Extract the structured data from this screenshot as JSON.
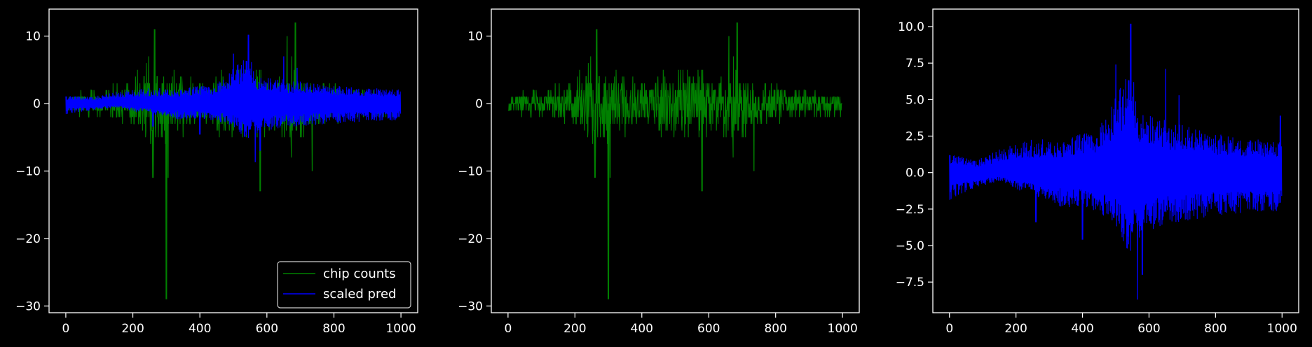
{
  "figure": {
    "background": "#000000",
    "foreground": "#ffffff"
  },
  "chart_data": [
    {
      "id": "left",
      "type": "line",
      "title": "",
      "xlabel": "",
      "ylabel": "",
      "xlim": [
        -50,
        1050
      ],
      "ylim": [
        -31,
        14
      ],
      "xticks": [
        0,
        200,
        400,
        600,
        800,
        1000
      ],
      "yticks": [
        -30,
        -20,
        -10,
        0,
        10
      ],
      "ytick_labels": [
        "−30",
        "−20",
        "−10",
        "0",
        "10"
      ],
      "grid": false,
      "legend": {
        "placement": "bottom-right",
        "entries": [
          {
            "label": "chip counts",
            "color": "#008000"
          },
          {
            "label": "scaled pred",
            "color": "#0000ff"
          }
        ]
      },
      "series": [
        {
          "name": "chip counts",
          "color": "#008000",
          "style": "counts",
          "n": 1000,
          "envelope": [
            [
              0,
              2
            ],
            [
              100,
              2.5
            ],
            [
              200,
              4
            ],
            [
              250,
              8.5
            ],
            [
              300,
              7
            ],
            [
              350,
              5
            ],
            [
              400,
              4
            ],
            [
              450,
              5.5
            ],
            [
              500,
              6
            ],
            [
              550,
              7
            ],
            [
              600,
              5
            ],
            [
              650,
              6.5
            ],
            [
              680,
              9.5
            ],
            [
              720,
              5
            ],
            [
              800,
              3.5
            ],
            [
              900,
              2.5
            ],
            [
              1000,
              2
            ]
          ],
          "spikes": [
            [
              265,
              11
            ],
            [
              300,
              -29
            ],
            [
              305,
              -11
            ],
            [
              580,
              -13
            ],
            [
              660,
              10
            ],
            [
              685,
              12
            ],
            [
              735,
              -10
            ],
            [
              260,
              -11
            ]
          ]
        },
        {
          "name": "scaled pred",
          "color": "#0000ff",
          "style": "pred",
          "n": 1000,
          "upper": [
            [
              0,
              0.7
            ],
            [
              80,
              0.6
            ],
            [
              150,
              1.1
            ],
            [
              250,
              1.4
            ],
            [
              350,
              1.4
            ],
            [
              450,
              1.8
            ],
            [
              500,
              3.2
            ],
            [
              545,
              4.5
            ],
            [
              570,
              2.5
            ],
            [
              650,
              2.2
            ],
            [
              750,
              1.8
            ],
            [
              850,
              1.5
            ],
            [
              1000,
              1.3
            ]
          ],
          "lower": [
            [
              0,
              -1.0
            ],
            [
              80,
              -0.6
            ],
            [
              150,
              -0.4
            ],
            [
              250,
              -1.0
            ],
            [
              350,
              -1.5
            ],
            [
              450,
              -1.5
            ],
            [
              500,
              -2.3
            ],
            [
              545,
              -3.6
            ],
            [
              580,
              -2.6
            ],
            [
              650,
              -2.2
            ],
            [
              800,
              -1.8
            ],
            [
              1000,
              -1.5
            ]
          ],
          "spikes": [
            [
              545,
              10.2
            ],
            [
              500,
              7.4
            ],
            [
              565,
              -8.7
            ],
            [
              650,
              7.0
            ],
            [
              690,
              5.3
            ],
            [
              580,
              -7.0
            ],
            [
              260,
              -3.4
            ],
            [
              400,
              -4.6
            ]
          ]
        }
      ]
    },
    {
      "id": "middle",
      "type": "line",
      "title": "",
      "xlabel": "",
      "ylabel": "",
      "xlim": [
        -50,
        1050
      ],
      "ylim": [
        -31,
        14
      ],
      "xticks": [
        0,
        200,
        400,
        600,
        800,
        1000
      ],
      "yticks": [
        -30,
        -20,
        -10,
        0,
        10
      ],
      "ytick_labels": [
        "−30",
        "−20",
        "−10",
        "0",
        "10"
      ],
      "grid": false,
      "series": [
        {
          "name": "chip counts",
          "color": "#008000",
          "style": "counts",
          "n": 1000,
          "envelope": [
            [
              0,
              2
            ],
            [
              100,
              2.5
            ],
            [
              200,
              4
            ],
            [
              250,
              8.5
            ],
            [
              300,
              7
            ],
            [
              350,
              5
            ],
            [
              400,
              4
            ],
            [
              450,
              5.5
            ],
            [
              500,
              6
            ],
            [
              550,
              7
            ],
            [
              600,
              5
            ],
            [
              650,
              6.5
            ],
            [
              680,
              9.5
            ],
            [
              720,
              5
            ],
            [
              800,
              3.5
            ],
            [
              900,
              2.5
            ],
            [
              1000,
              2
            ]
          ],
          "spikes": [
            [
              265,
              11
            ],
            [
              300,
              -29
            ],
            [
              305,
              -11
            ],
            [
              580,
              -13
            ],
            [
              660,
              10
            ],
            [
              685,
              12
            ],
            [
              735,
              -10
            ],
            [
              260,
              -11
            ]
          ]
        }
      ]
    },
    {
      "id": "right",
      "type": "line",
      "title": "",
      "xlabel": "",
      "ylabel": "",
      "xlim": [
        -50,
        1050
      ],
      "ylim": [
        -9.6,
        11.2
      ],
      "xticks": [
        0,
        200,
        400,
        600,
        800,
        1000
      ],
      "yticks": [
        -7.5,
        -5.0,
        -2.5,
        0.0,
        2.5,
        5.0,
        7.5,
        10.0
      ],
      "ytick_labels": [
        "−7.5",
        "−5.0",
        "−2.5",
        "0.0",
        "2.5",
        "5.0",
        "7.5",
        "10.0"
      ],
      "grid": false,
      "series": [
        {
          "name": "scaled pred",
          "color": "#0000ff",
          "style": "pred",
          "n": 1000,
          "upper": [
            [
              0,
              0.8
            ],
            [
              80,
              0.5
            ],
            [
              150,
              1.0
            ],
            [
              250,
              1.4
            ],
            [
              350,
              1.4
            ],
            [
              450,
              1.9
            ],
            [
              500,
              3.2
            ],
            [
              545,
              4.5
            ],
            [
              570,
              2.6
            ],
            [
              650,
              2.2
            ],
            [
              750,
              1.8
            ],
            [
              850,
              1.5
            ],
            [
              1000,
              1.3
            ]
          ],
          "lower": [
            [
              0,
              -1.2
            ],
            [
              80,
              -0.6
            ],
            [
              150,
              -0.4
            ],
            [
              250,
              -1.0
            ],
            [
              350,
              -1.5
            ],
            [
              450,
              -1.6
            ],
            [
              500,
              -2.4
            ],
            [
              545,
              -3.8
            ],
            [
              580,
              -2.6
            ],
            [
              650,
              -2.2
            ],
            [
              800,
              -1.8
            ],
            [
              1000,
              -1.6
            ]
          ],
          "spikes": [
            [
              545,
              10.2
            ],
            [
              500,
              7.4
            ],
            [
              565,
              -8.7
            ],
            [
              650,
              7.1
            ],
            [
              690,
              5.3
            ],
            [
              580,
              -7.0
            ],
            [
              260,
              -3.4
            ],
            [
              400,
              -4.6
            ],
            [
              995,
              3.9
            ]
          ]
        }
      ]
    }
  ]
}
